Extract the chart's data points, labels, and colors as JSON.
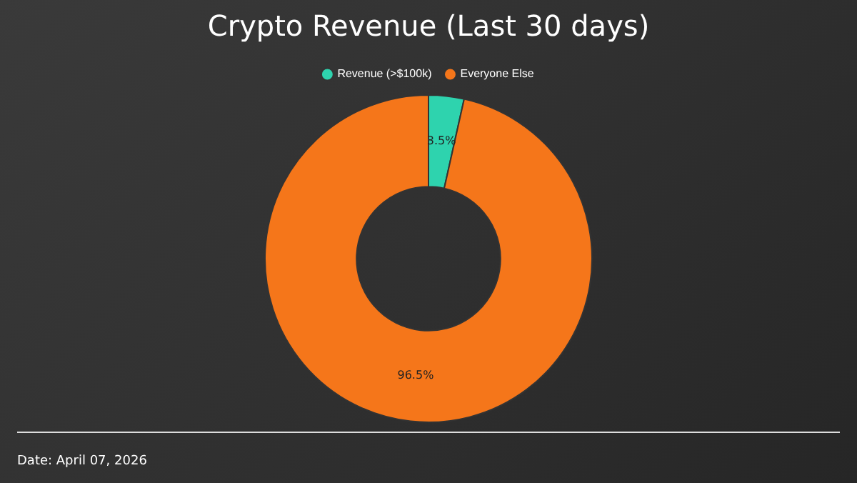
{
  "chart_data": {
    "type": "donut",
    "title": "Crypto Revenue (Last 30 days)",
    "categories": [
      "Revenue (>$100k)",
      "Everyone Else"
    ],
    "values": [
      3.5,
      96.5
    ],
    "colors": [
      "#2ed3ae",
      "#f5761a"
    ],
    "value_labels": [
      "3.5%",
      "96.5%"
    ],
    "legend": "top",
    "annotations": [
      "Date: April 07, 2026"
    ]
  }
}
